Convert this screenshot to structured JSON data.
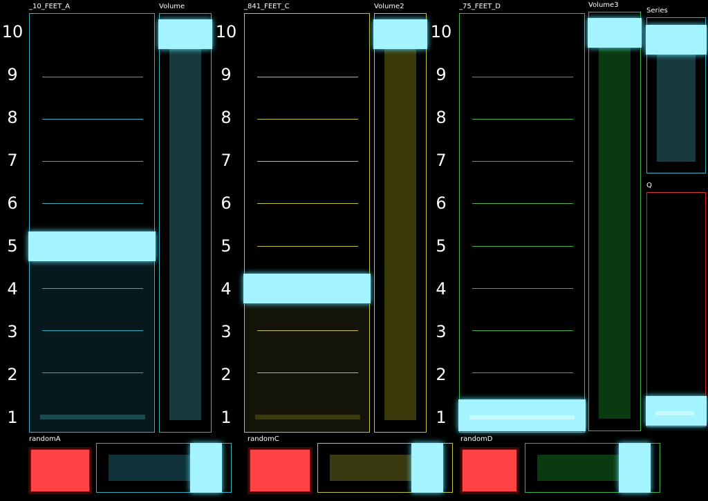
{
  "colors": {
    "cyan": "#2fb1c4",
    "yellow": "#c9c432",
    "green": "#3cb84a",
    "red": "#d62828",
    "handle": "#a4f4ff",
    "button": "#ff4242"
  },
  "scale_labels": [
    "10",
    "9",
    "8",
    "7",
    "6",
    "5",
    "4",
    "3",
    "2",
    "1"
  ],
  "strips": [
    {
      "name": "_10_FEET_A",
      "volume_label": "Volume",
      "random_label": "randomA",
      "color": "cyan",
      "value": 5,
      "volume": 0.96,
      "random_slider": 0.85
    },
    {
      "name": "_841_FEET_C",
      "volume_label": "Volume2",
      "random_label": "randomC",
      "color": "yellow",
      "value": 4,
      "volume": 0.96,
      "random_slider": 0.88
    },
    {
      "name": "_75_FEET_D",
      "volume_label": "Volume3",
      "random_label": "randomD",
      "color": "green",
      "value": 1,
      "volume": 0.97,
      "random_slider": 0.85
    }
  ],
  "series": {
    "label": "Series",
    "value": 0.9
  },
  "q": {
    "label": "Q",
    "value": 0.08
  }
}
